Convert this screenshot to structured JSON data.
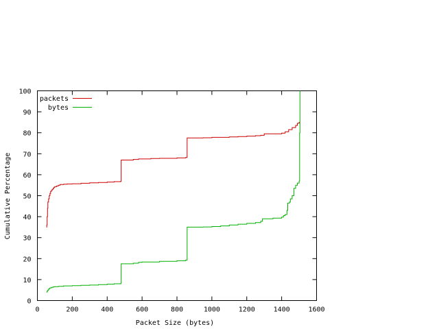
{
  "chart_data": {
    "type": "line",
    "title": "",
    "xlabel": "Packet Size (bytes)",
    "ylabel": "Cumulative Percentage",
    "xlim": [
      0,
      1600
    ],
    "ylim": [
      0,
      100
    ],
    "xticks": [
      0,
      200,
      400,
      600,
      800,
      1000,
      1200,
      1400,
      1600
    ],
    "yticks": [
      0,
      10,
      20,
      30,
      40,
      50,
      60,
      70,
      80,
      90,
      100
    ],
    "grid": false,
    "legend_position": "top-left",
    "series": [
      {
        "name": "packets",
        "color": "#cc0000",
        "step": true,
        "points": [
          [
            52,
            35
          ],
          [
            54,
            36
          ],
          [
            56,
            40
          ],
          [
            58,
            44
          ],
          [
            60,
            47
          ],
          [
            64,
            48.5
          ],
          [
            68,
            50
          ],
          [
            72,
            51
          ],
          [
            76,
            52
          ],
          [
            80,
            52.5
          ],
          [
            85,
            53
          ],
          [
            90,
            53.5
          ],
          [
            95,
            54
          ],
          [
            100,
            54.3
          ],
          [
            110,
            54.6
          ],
          [
            120,
            55
          ],
          [
            130,
            55.3
          ],
          [
            150,
            55.5
          ],
          [
            170,
            55.6
          ],
          [
            200,
            55.7
          ],
          [
            250,
            55.9
          ],
          [
            300,
            56.1
          ],
          [
            350,
            56.3
          ],
          [
            400,
            56.5
          ],
          [
            440,
            56.7
          ],
          [
            476,
            56.8
          ],
          [
            480,
            67
          ],
          [
            550,
            67.3
          ],
          [
            580,
            67.5
          ],
          [
            650,
            67.7
          ],
          [
            700,
            67.8
          ],
          [
            800,
            68
          ],
          [
            850,
            68.2
          ],
          [
            858,
            77.5
          ],
          [
            950,
            77.6
          ],
          [
            1000,
            77.8
          ],
          [
            1100,
            78
          ],
          [
            1150,
            78.2
          ],
          [
            1200,
            78.4
          ],
          [
            1250,
            78.6
          ],
          [
            1280,
            78.8
          ],
          [
            1300,
            79.5
          ],
          [
            1400,
            79.8
          ],
          [
            1420,
            80.5
          ],
          [
            1440,
            81.5
          ],
          [
            1460,
            82.5
          ],
          [
            1480,
            83.5
          ],
          [
            1490,
            84.5
          ],
          [
            1500,
            85
          ],
          [
            1505,
            85
          ]
        ]
      },
      {
        "name": "bytes",
        "color": "#00b000",
        "step": true,
        "points": [
          [
            52,
            4
          ],
          [
            56,
            4.5
          ],
          [
            60,
            5
          ],
          [
            64,
            5.5
          ],
          [
            70,
            6
          ],
          [
            80,
            6.3
          ],
          [
            90,
            6.5
          ],
          [
            100,
            6.6
          ],
          [
            120,
            6.8
          ],
          [
            150,
            7
          ],
          [
            200,
            7.1
          ],
          [
            250,
            7.3
          ],
          [
            300,
            7.4
          ],
          [
            350,
            7.6
          ],
          [
            400,
            7.8
          ],
          [
            440,
            8
          ],
          [
            476,
            8.1
          ],
          [
            480,
            17.5
          ],
          [
            550,
            17.8
          ],
          [
            580,
            18.2
          ],
          [
            600,
            18.4
          ],
          [
            700,
            18.7
          ],
          [
            800,
            19
          ],
          [
            850,
            19.3
          ],
          [
            858,
            35
          ],
          [
            950,
            35.1
          ],
          [
            1000,
            35.3
          ],
          [
            1050,
            35.6
          ],
          [
            1100,
            36
          ],
          [
            1150,
            36.4
          ],
          [
            1200,
            36.8
          ],
          [
            1250,
            37.2
          ],
          [
            1280,
            37.8
          ],
          [
            1290,
            39
          ],
          [
            1350,
            39.3
          ],
          [
            1400,
            39.8
          ],
          [
            1410,
            40.5
          ],
          [
            1420,
            41
          ],
          [
            1430,
            43
          ],
          [
            1435,
            46.5
          ],
          [
            1445,
            47
          ],
          [
            1450,
            48.5
          ],
          [
            1460,
            50
          ],
          [
            1470,
            53.5
          ],
          [
            1480,
            55
          ],
          [
            1490,
            56
          ],
          [
            1500,
            57
          ],
          [
            1503,
            80
          ],
          [
            1505,
            100
          ]
        ]
      }
    ]
  }
}
